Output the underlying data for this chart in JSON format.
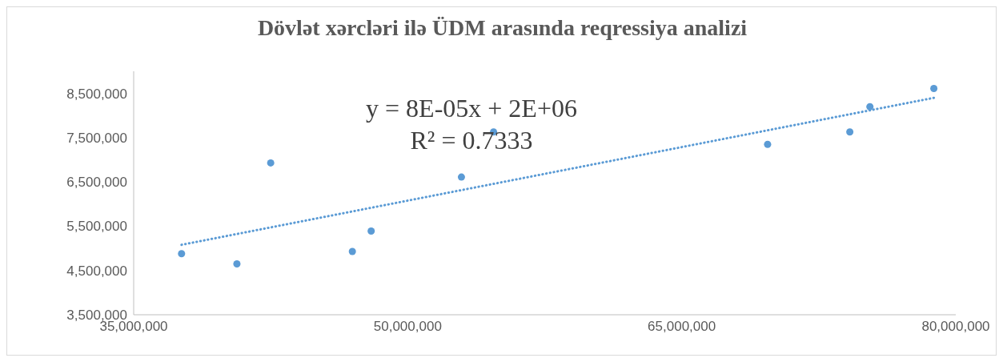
{
  "chart_data": {
    "type": "scatter",
    "title": "Dövlət xərcləri ilə ÜDM arasında reqressiya analizi",
    "annotations": [
      "y = 8E-05x + 2E+06",
      "R² = 0.7333"
    ],
    "series": [
      {
        "type": "scatter",
        "color": "#5b9bd5",
        "marker": "circle",
        "x": [
          37620000,
          40650000,
          42500000,
          46970000,
          48000000,
          52940000,
          54700000,
          69700000,
          74200000,
          75300000,
          78800000
        ],
        "values": [
          4880000,
          4650000,
          6930000,
          4930000,
          5390000,
          6610000,
          7630000,
          7350000,
          7630000,
          8200000,
          8610000
        ]
      },
      {
        "type": "line",
        "color": "#5b9bd5",
        "line_style": "dotted",
        "marker": "none",
        "x": [
          37620000,
          78800000
        ],
        "values": [
          5080000,
          8400000
        ]
      }
    ],
    "xlim": [
      35000000,
      80000000
    ],
    "xticks": [
      {
        "value": 35000000,
        "label": "35,000,000"
      },
      {
        "value": 50000000,
        "label": "50,000,000"
      },
      {
        "value": 65000000,
        "label": "65,000,000"
      },
      {
        "value": 80000000,
        "label": "80,000,000"
      }
    ],
    "ylim": [
      3500000,
      9000000
    ],
    "yticks": [
      {
        "value": 3500000,
        "label": "3,500,000"
      },
      {
        "value": 4500000,
        "label": "4,500,000"
      },
      {
        "value": 5500000,
        "label": "5,500,000"
      },
      {
        "value": 6500000,
        "label": "6,500,000"
      },
      {
        "value": 7500000,
        "label": "7,500,000"
      },
      {
        "value": 8500000,
        "label": "8,500,000"
      }
    ],
    "grid": false,
    "legend": false
  }
}
